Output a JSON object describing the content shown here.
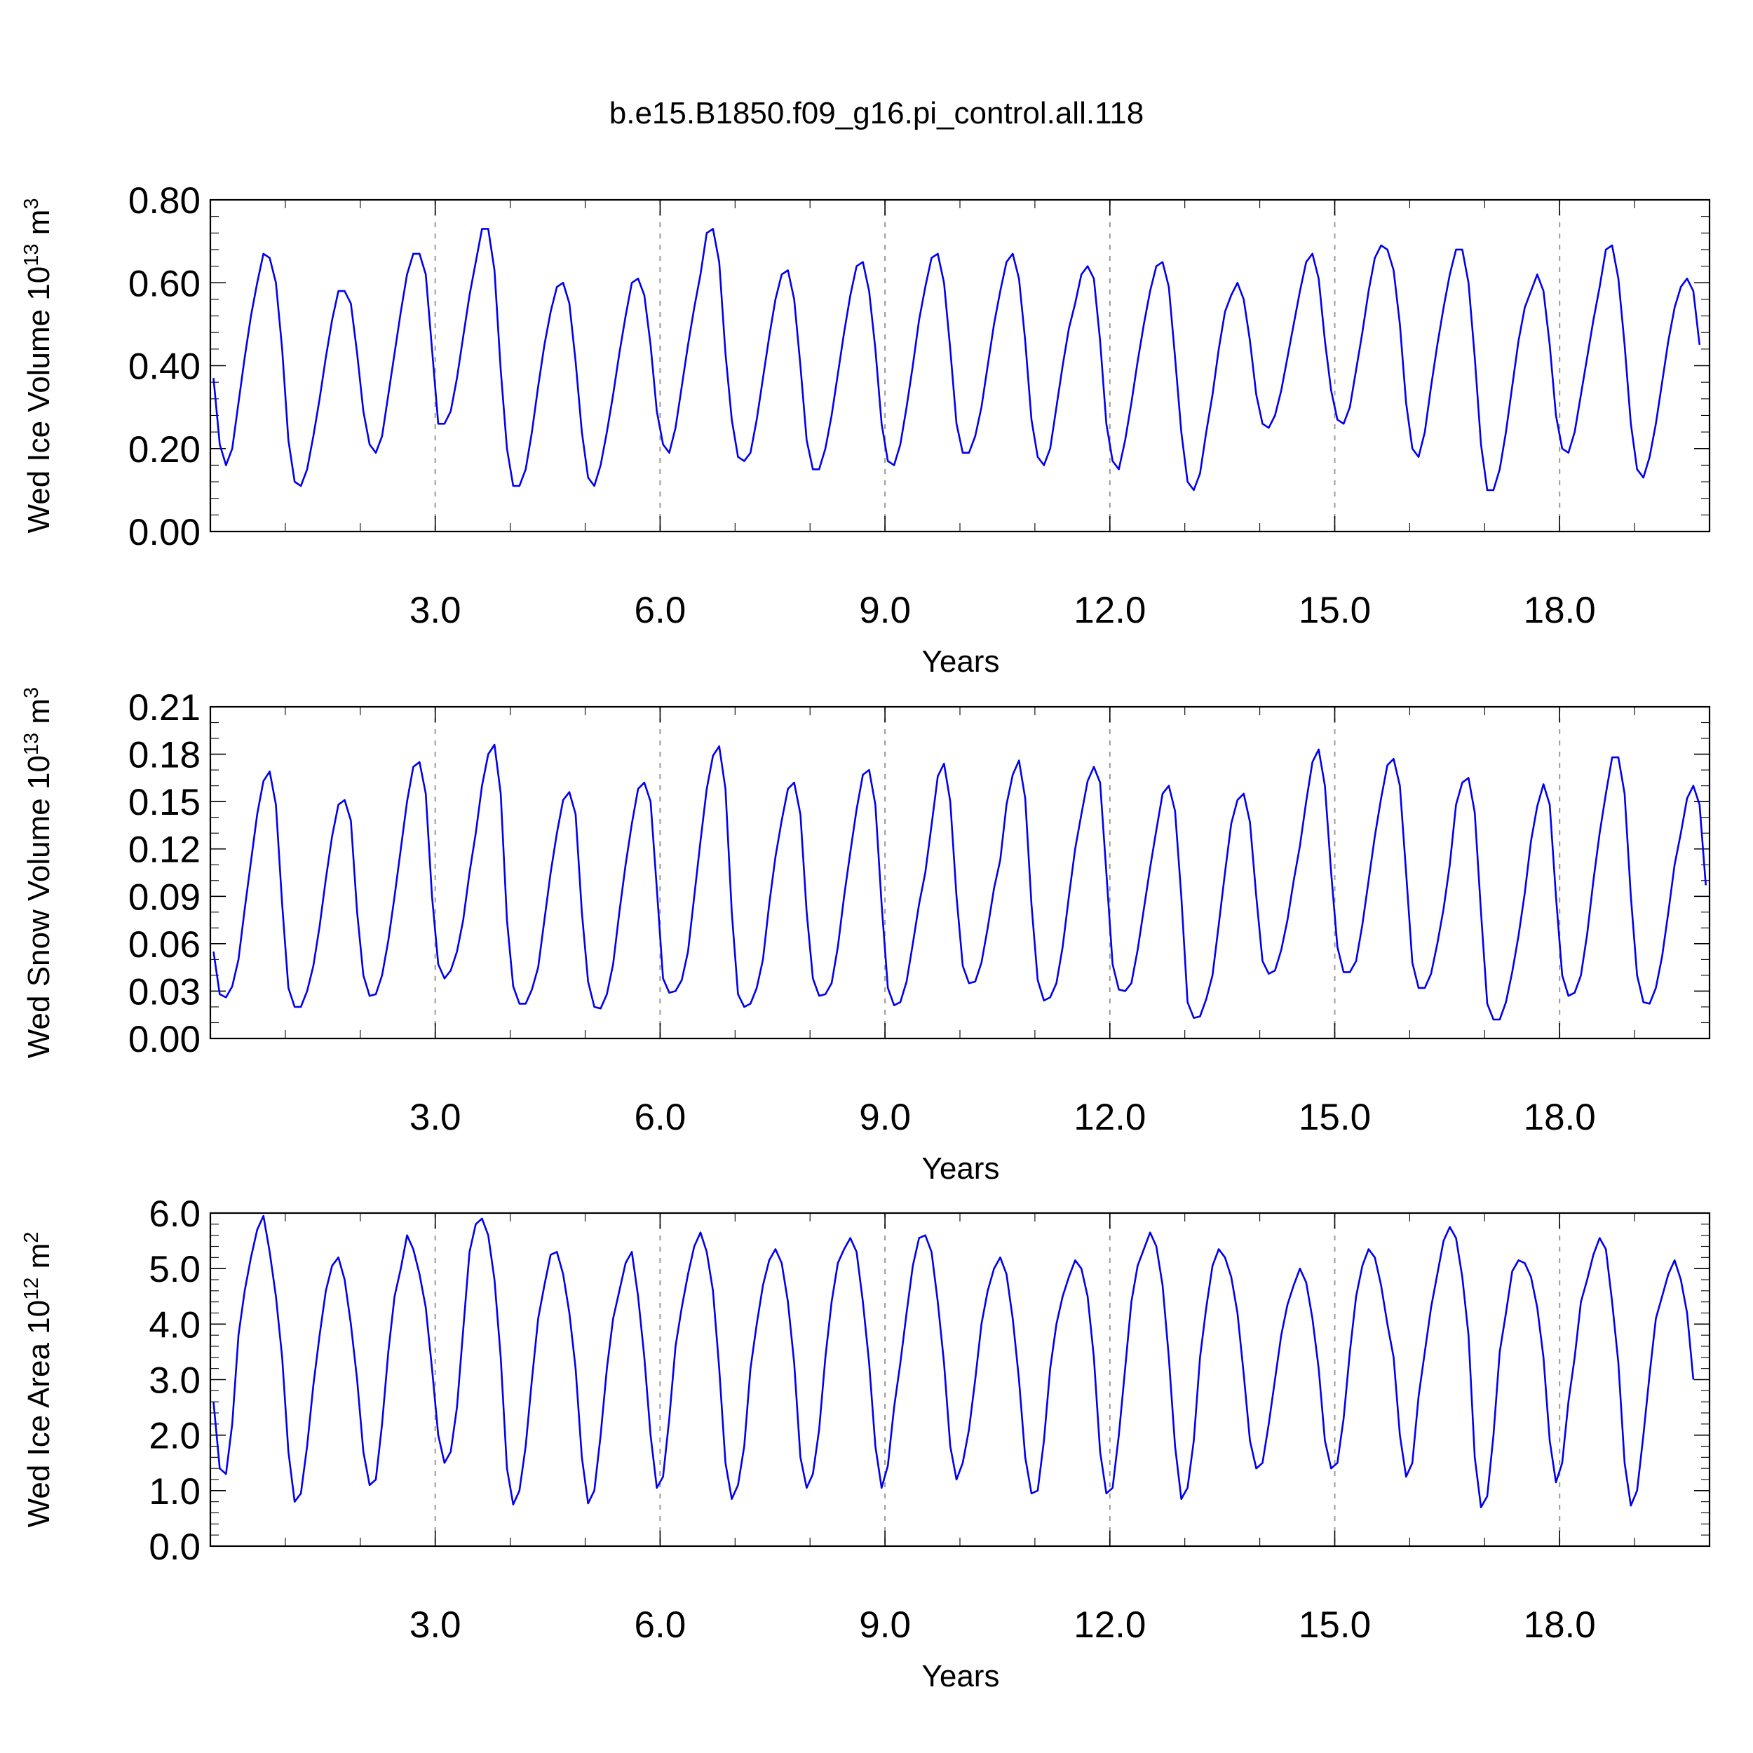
{
  "figure": {
    "title": "b.e15.B1850.f09_g16.pi_control.all.118"
  },
  "colors": {
    "series": "#0000ee",
    "grid": "#9a9a9a",
    "axis": "#000000"
  },
  "chart_data": [
    {
      "type": "line",
      "ylabel_main": "Wed Ice Volume 10",
      "ylabel_sup": "13",
      "ylabel_unit": " m",
      "ylabel_unit_sup": "3",
      "xlabel": "Years",
      "xlim": [
        0.0,
        20.0
      ],
      "ylim": [
        0.0,
        0.8
      ],
      "xticks": [
        3.0,
        6.0,
        9.0,
        12.0,
        15.0,
        18.0
      ],
      "xtick_labels": [
        "3.0",
        "6.0",
        "9.0",
        "12.0",
        "15.0",
        "18.0"
      ],
      "yticks": [
        0.0,
        0.2,
        0.4,
        0.6,
        0.8
      ],
      "ytick_labels": [
        "0.00",
        "0.20",
        "0.40",
        "0.60",
        "0.80"
      ],
      "grid": "vertical dashed at major x ticks",
      "series": [
        {
          "x_start": 0.0417,
          "x_step": 0.0833,
          "values": [
            0.37,
            0.21,
            0.16,
            0.2,
            0.31,
            0.42,
            0.52,
            0.6,
            0.67,
            0.66,
            0.6,
            0.44,
            0.22,
            0.12,
            0.11,
            0.15,
            0.23,
            0.32,
            0.42,
            0.51,
            0.58,
            0.58,
            0.55,
            0.43,
            0.29,
            0.21,
            0.19,
            0.23,
            0.33,
            0.43,
            0.53,
            0.62,
            0.67,
            0.67,
            0.62,
            0.44,
            0.26,
            0.26,
            0.29,
            0.37,
            0.47,
            0.57,
            0.65,
            0.73,
            0.73,
            0.63,
            0.39,
            0.2,
            0.11,
            0.11,
            0.15,
            0.24,
            0.35,
            0.45,
            0.53,
            0.59,
            0.6,
            0.55,
            0.41,
            0.24,
            0.13,
            0.11,
            0.16,
            0.24,
            0.33,
            0.43,
            0.52,
            0.6,
            0.61,
            0.57,
            0.45,
            0.29,
            0.21,
            0.19,
            0.25,
            0.35,
            0.45,
            0.54,
            0.62,
            0.72,
            0.73,
            0.65,
            0.43,
            0.27,
            0.18,
            0.17,
            0.19,
            0.27,
            0.37,
            0.47,
            0.56,
            0.62,
            0.63,
            0.56,
            0.4,
            0.22,
            0.15,
            0.15,
            0.2,
            0.28,
            0.38,
            0.48,
            0.57,
            0.64,
            0.65,
            0.58,
            0.44,
            0.26,
            0.17,
            0.16,
            0.21,
            0.3,
            0.4,
            0.51,
            0.59,
            0.66,
            0.67,
            0.6,
            0.44,
            0.26,
            0.19,
            0.19,
            0.23,
            0.3,
            0.4,
            0.5,
            0.58,
            0.65,
            0.67,
            0.61,
            0.46,
            0.27,
            0.18,
            0.16,
            0.2,
            0.3,
            0.4,
            0.49,
            0.55,
            0.62,
            0.64,
            0.61,
            0.46,
            0.26,
            0.17,
            0.15,
            0.22,
            0.31,
            0.41,
            0.5,
            0.58,
            0.64,
            0.65,
            0.59,
            0.42,
            0.24,
            0.12,
            0.1,
            0.14,
            0.24,
            0.33,
            0.44,
            0.53,
            0.57,
            0.6,
            0.56,
            0.46,
            0.33,
            0.26,
            0.25,
            0.28,
            0.34,
            0.42,
            0.5,
            0.58,
            0.65,
            0.67,
            0.61,
            0.46,
            0.34,
            0.27,
            0.26,
            0.3,
            0.39,
            0.48,
            0.58,
            0.66,
            0.69,
            0.68,
            0.63,
            0.5,
            0.31,
            0.2,
            0.18,
            0.24,
            0.35,
            0.45,
            0.54,
            0.62,
            0.68,
            0.68,
            0.6,
            0.42,
            0.21,
            0.1,
            0.1,
            0.15,
            0.24,
            0.35,
            0.46,
            0.54,
            0.58,
            0.62,
            0.58,
            0.45,
            0.28,
            0.2,
            0.19,
            0.24,
            0.33,
            0.42,
            0.51,
            0.59,
            0.68,
            0.69,
            0.61,
            0.45,
            0.26,
            0.15,
            0.13,
            0.18,
            0.26,
            0.36,
            0.46,
            0.54,
            0.59,
            0.61,
            0.58,
            0.45
          ]
        }
      ]
    },
    {
      "type": "line",
      "ylabel_main": "Wed Snow Volume 10",
      "ylabel_sup": "13",
      "ylabel_unit": " m",
      "ylabel_unit_sup": "3",
      "xlabel": "Years",
      "xlim": [
        0.0,
        20.0
      ],
      "ylim": [
        0.0,
        0.21
      ],
      "xticks": [
        3.0,
        6.0,
        9.0,
        12.0,
        15.0,
        18.0
      ],
      "xtick_labels": [
        "3.0",
        "6.0",
        "9.0",
        "12.0",
        "15.0",
        "18.0"
      ],
      "yticks": [
        0.0,
        0.03,
        0.06,
        0.09,
        0.12,
        0.15,
        0.18,
        0.21
      ],
      "ytick_labels": [
        "0.00",
        "0.03",
        "0.06",
        "0.09",
        "0.12",
        "0.15",
        "0.18",
        "0.21"
      ],
      "grid": "vertical dashed at major x ticks",
      "series": [
        {
          "x_start": 0.0417,
          "x_step": 0.0833,
          "values": [
            0.055,
            0.028,
            0.026,
            0.033,
            0.05,
            0.082,
            0.112,
            0.142,
            0.163,
            0.169,
            0.148,
            0.085,
            0.032,
            0.02,
            0.02,
            0.03,
            0.046,
            0.071,
            0.101,
            0.128,
            0.148,
            0.151,
            0.138,
            0.08,
            0.04,
            0.027,
            0.028,
            0.04,
            0.062,
            0.09,
            0.12,
            0.15,
            0.172,
            0.175,
            0.155,
            0.09,
            0.047,
            0.038,
            0.043,
            0.055,
            0.075,
            0.105,
            0.13,
            0.16,
            0.18,
            0.186,
            0.155,
            0.075,
            0.033,
            0.022,
            0.022,
            0.031,
            0.045,
            0.075,
            0.105,
            0.13,
            0.151,
            0.156,
            0.142,
            0.08,
            0.036,
            0.02,
            0.019,
            0.028,
            0.047,
            0.08,
            0.11,
            0.136,
            0.158,
            0.162,
            0.15,
            0.095,
            0.038,
            0.029,
            0.03,
            0.037,
            0.055,
            0.09,
            0.125,
            0.158,
            0.179,
            0.185,
            0.158,
            0.08,
            0.028,
            0.02,
            0.022,
            0.032,
            0.05,
            0.085,
            0.115,
            0.138,
            0.158,
            0.162,
            0.142,
            0.08,
            0.038,
            0.027,
            0.028,
            0.035,
            0.058,
            0.09,
            0.118,
            0.145,
            0.167,
            0.17,
            0.148,
            0.085,
            0.032,
            0.021,
            0.023,
            0.036,
            0.06,
            0.085,
            0.105,
            0.135,
            0.166,
            0.174,
            0.15,
            0.09,
            0.046,
            0.035,
            0.036,
            0.048,
            0.07,
            0.095,
            0.113,
            0.148,
            0.167,
            0.176,
            0.152,
            0.085,
            0.037,
            0.024,
            0.026,
            0.035,
            0.058,
            0.09,
            0.12,
            0.142,
            0.163,
            0.172,
            0.162,
            0.105,
            0.047,
            0.031,
            0.03,
            0.035,
            0.056,
            0.082,
            0.108,
            0.132,
            0.155,
            0.16,
            0.144,
            0.09,
            0.023,
            0.013,
            0.014,
            0.025,
            0.04,
            0.072,
            0.105,
            0.136,
            0.151,
            0.155,
            0.137,
            0.09,
            0.049,
            0.041,
            0.043,
            0.056,
            0.075,
            0.1,
            0.122,
            0.15,
            0.175,
            0.183,
            0.16,
            0.105,
            0.058,
            0.042,
            0.042,
            0.049,
            0.072,
            0.1,
            0.128,
            0.152,
            0.173,
            0.177,
            0.16,
            0.105,
            0.048,
            0.032,
            0.032,
            0.041,
            0.06,
            0.082,
            0.11,
            0.148,
            0.162,
            0.165,
            0.143,
            0.08,
            0.022,
            0.012,
            0.012,
            0.023,
            0.042,
            0.065,
            0.092,
            0.125,
            0.147,
            0.161,
            0.148,
            0.09,
            0.04,
            0.027,
            0.029,
            0.04,
            0.066,
            0.1,
            0.13,
            0.155,
            0.178,
            0.178,
            0.155,
            0.09,
            0.04,
            0.023,
            0.022,
            0.032,
            0.052,
            0.08,
            0.11,
            0.13,
            0.152,
            0.16,
            0.148,
            0.097
          ]
        }
      ]
    },
    {
      "type": "line",
      "ylabel_main": "Wed Ice Area 10",
      "ylabel_sup": "12",
      "ylabel_unit": " m",
      "ylabel_unit_sup": "2",
      "xlabel": "Years",
      "xlim": [
        0.0,
        20.0
      ],
      "ylim": [
        0.0,
        6.0
      ],
      "xticks": [
        3.0,
        6.0,
        9.0,
        12.0,
        15.0,
        18.0
      ],
      "xtick_labels": [
        "3.0",
        "6.0",
        "9.0",
        "12.0",
        "15.0",
        "18.0"
      ],
      "yticks": [
        0.0,
        1.0,
        2.0,
        3.0,
        4.0,
        5.0,
        6.0
      ],
      "ytick_labels": [
        "0.0",
        "1.0",
        "2.0",
        "3.0",
        "4.0",
        "5.0",
        "6.0"
      ],
      "grid": "vertical dashed at major x ticks",
      "series": [
        {
          "x_start": 0.0417,
          "x_step": 0.0833,
          "values": [
            2.6,
            1.4,
            1.3,
            2.2,
            3.8,
            4.6,
            5.2,
            5.7,
            5.95,
            5.3,
            4.5,
            3.4,
            1.7,
            0.8,
            0.95,
            1.8,
            2.9,
            3.8,
            4.6,
            5.05,
            5.2,
            4.8,
            4.0,
            3.0,
            1.7,
            1.1,
            1.2,
            2.2,
            3.5,
            4.5,
            5.0,
            5.6,
            5.35,
            4.9,
            4.3,
            3.2,
            2.0,
            1.5,
            1.7,
            2.5,
            3.9,
            5.3,
            5.8,
            5.9,
            5.6,
            4.8,
            3.4,
            1.4,
            0.75,
            1.0,
            1.8,
            3.0,
            4.1,
            4.7,
            5.25,
            5.3,
            4.9,
            4.2,
            3.2,
            1.6,
            0.77,
            1.0,
            2.0,
            3.2,
            4.1,
            4.6,
            5.1,
            5.3,
            4.5,
            3.4,
            2.0,
            1.05,
            1.25,
            2.3,
            3.6,
            4.3,
            4.9,
            5.4,
            5.65,
            5.3,
            4.6,
            3.2,
            1.5,
            0.85,
            1.1,
            1.8,
            3.2,
            4.0,
            4.7,
            5.15,
            5.35,
            5.1,
            4.4,
            3.3,
            1.6,
            1.05,
            1.3,
            2.1,
            3.4,
            4.4,
            5.1,
            5.35,
            5.55,
            5.3,
            4.4,
            3.3,
            1.8,
            1.05,
            1.45,
            2.5,
            3.3,
            4.2,
            5.05,
            5.55,
            5.6,
            5.3,
            4.4,
            3.3,
            1.8,
            1.2,
            1.5,
            2.1,
            3.0,
            4.0,
            4.6,
            5.0,
            5.2,
            4.9,
            4.1,
            3.0,
            1.6,
            0.95,
            1.0,
            1.9,
            3.2,
            4.0,
            4.5,
            4.85,
            5.15,
            5.0,
            4.5,
            3.4,
            1.7,
            0.95,
            1.05,
            2.0,
            3.2,
            4.4,
            5.05,
            5.35,
            5.65,
            5.4,
            4.7,
            3.4,
            1.8,
            0.85,
            1.05,
            1.9,
            3.4,
            4.3,
            5.05,
            5.35,
            5.2,
            4.85,
            4.2,
            3.1,
            1.9,
            1.4,
            1.5,
            2.2,
            3.0,
            3.8,
            4.35,
            4.7,
            5.0,
            4.75,
            4.1,
            3.2,
            1.9,
            1.4,
            1.5,
            2.3,
            3.5,
            4.5,
            5.05,
            5.35,
            5.2,
            4.7,
            4.0,
            3.4,
            2.0,
            1.25,
            1.5,
            2.7,
            3.5,
            4.3,
            4.9,
            5.5,
            5.75,
            5.55,
            4.85,
            3.8,
            1.6,
            0.7,
            0.9,
            2.0,
            3.5,
            4.2,
            4.95,
            5.15,
            5.1,
            4.85,
            4.3,
            3.4,
            1.9,
            1.15,
            1.5,
            2.6,
            3.4,
            4.4,
            4.8,
            5.25,
            5.55,
            5.35,
            4.4,
            3.3,
            1.5,
            0.73,
            1.0,
            2.0,
            3.1,
            4.1,
            4.5,
            4.9,
            5.15,
            4.8,
            4.2,
            3.0
          ]
        }
      ]
    }
  ]
}
